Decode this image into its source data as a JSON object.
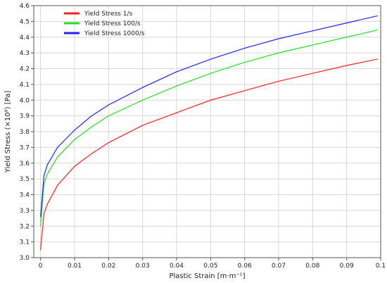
{
  "chart_data": {
    "type": "line",
    "title": "",
    "xlabel": "Plastic Strain  [m·m⁻¹]",
    "ylabel": "Yield Stress  (×10⁸)  [Pa]",
    "xlim": [
      -0.002,
      0.1
    ],
    "ylim": [
      3.0,
      4.6
    ],
    "xticks": [
      "0",
      "0.01",
      "0.02",
      "0.03",
      "0.04",
      "0.05",
      "0.06",
      "0.07",
      "0.08",
      "0.09",
      "0.1"
    ],
    "yticks": [
      "3.0",
      "3.1",
      "3.2",
      "3.3",
      "3.4",
      "3.5",
      "3.6",
      "3.7",
      "3.8",
      "3.9",
      "4.0",
      "4.1",
      "4.2",
      "4.3",
      "4.4",
      "4.5",
      "4.6"
    ],
    "grid": true,
    "legend_position": "top-left",
    "series": [
      {
        "name": "Yield Stress 1/s",
        "color": "#ff2020",
        "x": [
          0.0,
          0.001,
          0.002,
          0.005,
          0.01,
          0.015,
          0.02,
          0.03,
          0.04,
          0.05,
          0.06,
          0.07,
          0.08,
          0.09,
          0.099
        ],
        "y": [
          3.05,
          3.28,
          3.34,
          3.46,
          3.58,
          3.66,
          3.73,
          3.84,
          3.92,
          4.0,
          4.06,
          4.12,
          4.17,
          4.22,
          4.26
        ]
      },
      {
        "name": "Yield Stress 100/s",
        "color": "#20e020",
        "x": [
          0.0,
          0.001,
          0.002,
          0.005,
          0.01,
          0.015,
          0.02,
          0.03,
          0.04,
          0.05,
          0.06,
          0.07,
          0.08,
          0.09,
          0.099
        ],
        "y": [
          3.2,
          3.47,
          3.53,
          3.64,
          3.75,
          3.83,
          3.9,
          4.0,
          4.09,
          4.17,
          4.24,
          4.3,
          4.35,
          4.4,
          4.445
        ]
      },
      {
        "name": "Yield Stress 1000/s",
        "color": "#2020ff",
        "x": [
          0.0,
          0.001,
          0.002,
          0.005,
          0.01,
          0.015,
          0.02,
          0.03,
          0.04,
          0.05,
          0.06,
          0.07,
          0.08,
          0.09,
          0.099
        ],
        "y": [
          3.26,
          3.52,
          3.59,
          3.7,
          3.81,
          3.9,
          3.97,
          4.08,
          4.18,
          4.26,
          4.33,
          4.39,
          4.44,
          4.49,
          4.535
        ]
      }
    ]
  }
}
